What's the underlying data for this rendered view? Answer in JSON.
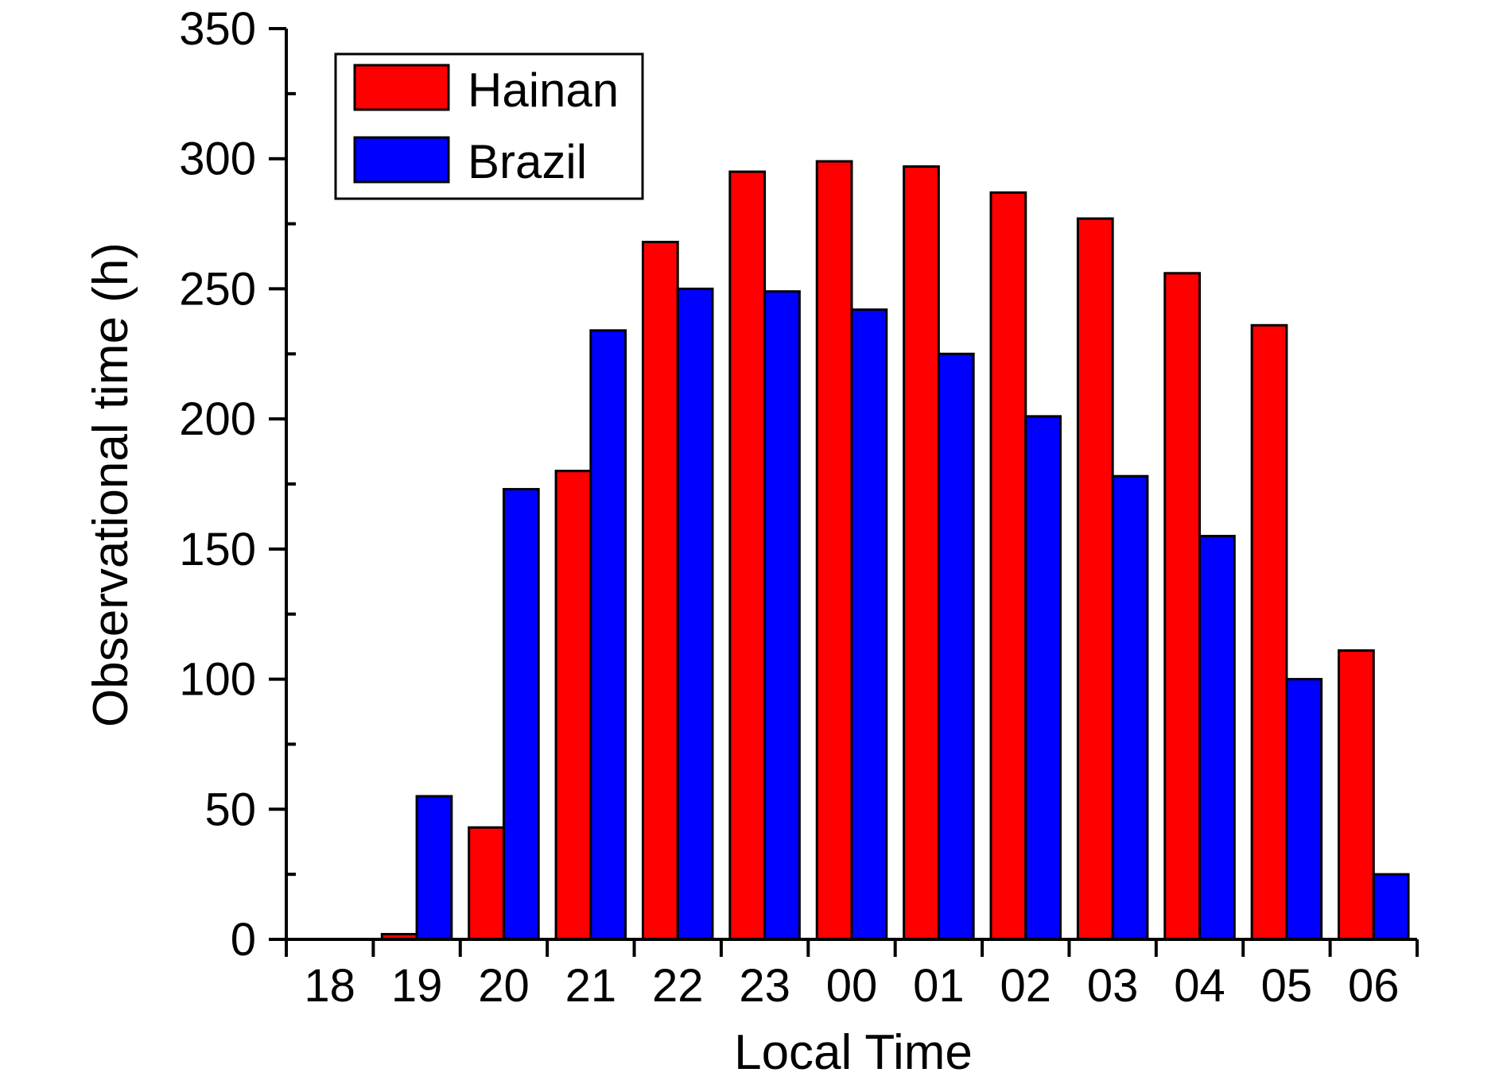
{
  "chart_data": {
    "type": "bar",
    "xlabel": "Local Time",
    "ylabel": "Observational time (h)",
    "ylim": [
      0,
      350
    ],
    "yticks": [
      "0",
      "50",
      "100",
      "150",
      "200",
      "250",
      "300",
      "350"
    ],
    "categories": [
      "18",
      "19",
      "20",
      "21",
      "22",
      "23",
      "00",
      "01",
      "02",
      "03",
      "04",
      "05",
      "06"
    ],
    "series": [
      {
        "name": "Hainan",
        "color": "#ff0000",
        "values": [
          0,
          2,
          43,
          180,
          268,
          295,
          299,
          297,
          287,
          277,
          256,
          236,
          111
        ]
      },
      {
        "name": "Brazil",
        "color": "#0000ff",
        "values": [
          0,
          55,
          173,
          234,
          250,
          249,
          242,
          225,
          201,
          178,
          155,
          100,
          25
        ]
      }
    ],
    "legend_position": "top-left",
    "grid": false
  }
}
